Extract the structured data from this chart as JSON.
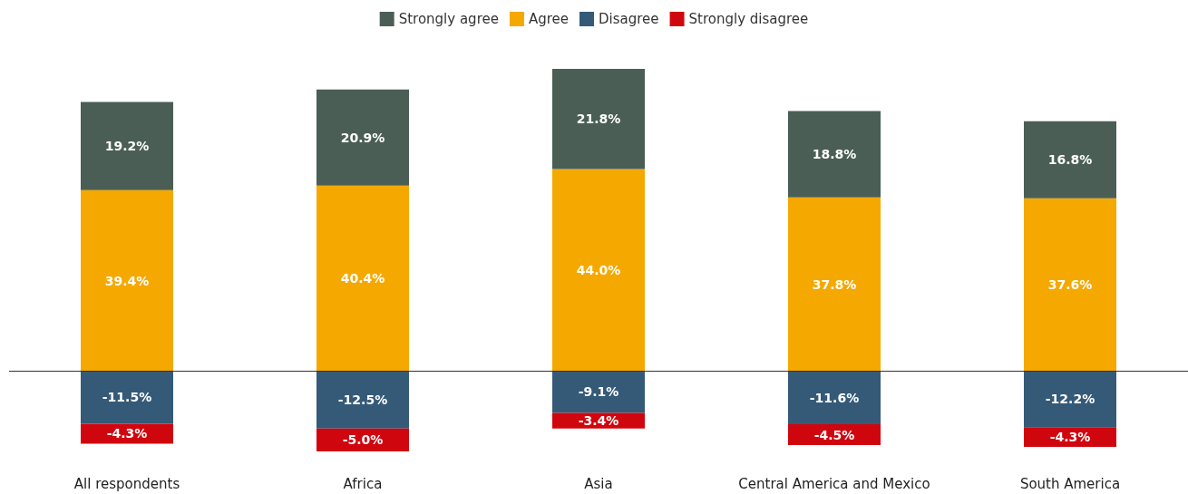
{
  "chart_data": {
    "type": "bar",
    "stacked": true,
    "legend": "top",
    "tick_labels": "x",
    "categories": [
      "All respondents",
      "Africa",
      "Asia",
      "Central America and Mexico",
      "South America"
    ],
    "series": [
      {
        "name": "Agree",
        "color": "#f5a800",
        "values": [
          39.4,
          40.4,
          44.0,
          37.8,
          37.6
        ],
        "value_labels": [
          "39.4%",
          "40.4%",
          "44.0%",
          "37.8%",
          "37.6%"
        ]
      },
      {
        "name": "Strongly agree",
        "color": "#4a5e55",
        "values": [
          19.2,
          20.9,
          21.8,
          18.8,
          16.8
        ],
        "value_labels": [
          "19.2%",
          "20.9%",
          "21.8%",
          "18.8%",
          "16.8%"
        ]
      },
      {
        "name": "Disagree",
        "color": "#355a78",
        "values": [
          -11.5,
          -12.5,
          -9.1,
          -11.6,
          -12.2
        ],
        "value_labels": [
          "-11.5%",
          "-12.5%",
          "-9.1%",
          "-11.6%",
          "-12.2%"
        ]
      },
      {
        "name": "Strongly disagree",
        "color": "#d0060f",
        "values": [
          -4.3,
          -5.0,
          -3.4,
          -4.5,
          -4.3
        ],
        "value_labels": [
          "-4.3%",
          "-5.0%",
          "-3.4%",
          "-4.5%",
          "-4.3%"
        ]
      }
    ]
  }
}
